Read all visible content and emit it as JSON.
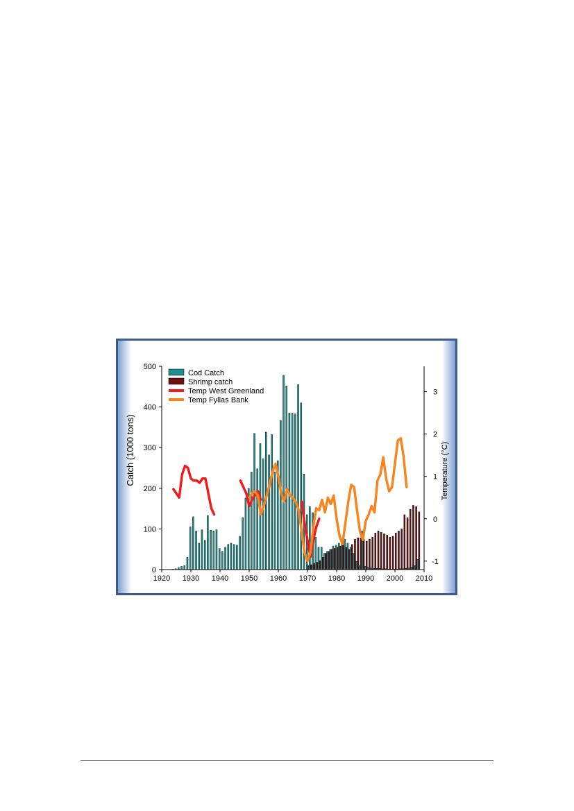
{
  "colors": {
    "cod": "#1f8e8e",
    "shrimp": "#6b0f10",
    "temp_west_greenland": "#ee1c1c",
    "temp_fyllas_bank": "#f7841c"
  },
  "chart_data": {
    "type": "bar",
    "xlabel": "",
    "ylabel": "Catch (1000 tons)",
    "y2label": "Temperature (°C)",
    "xlim": [
      1920,
      2010
    ],
    "ylim": [
      0,
      500
    ],
    "y2lim": [
      -1.2,
      3.6
    ],
    "xticks": [
      "1920",
      "1930",
      "1940",
      "1950",
      "1960",
      "1970",
      "1980",
      "1990",
      "2000",
      "2010"
    ],
    "yticks": [
      "0",
      "100",
      "200",
      "300",
      "400",
      "500"
    ],
    "y2ticks": [
      "-1",
      "0",
      "1",
      "2",
      "3"
    ],
    "legend_position": "top-left",
    "legend": [
      "Cod Catch",
      "Shrimp catch",
      "Temp West Greenland",
      "Temp Fyllas Bank"
    ],
    "series": [
      {
        "name": "Cod Catch",
        "kind": "bar",
        "axis": "left",
        "x": [
          1924,
          1925,
          1926,
          1927,
          1928,
          1929,
          1930,
          1931,
          1932,
          1933,
          1934,
          1935,
          1936,
          1937,
          1938,
          1939,
          1940,
          1941,
          1942,
          1943,
          1944,
          1945,
          1946,
          1947,
          1948,
          1949,
          1950,
          1951,
          1952,
          1953,
          1954,
          1955,
          1956,
          1957,
          1958,
          1959,
          1960,
          1961,
          1962,
          1963,
          1964,
          1965,
          1966,
          1967,
          1968,
          1969,
          1970,
          1971,
          1972,
          1973,
          1974,
          1975,
          1976,
          1977,
          1978,
          1979,
          1980,
          1981,
          1982,
          1983,
          1984,
          1985,
          1986,
          1987,
          1988,
          1989,
          1990,
          1991,
          1992,
          1993,
          1994,
          1995,
          1996,
          1997,
          1998,
          1999,
          2000,
          2001,
          2002,
          2003,
          2004,
          2005,
          2006,
          2007,
          2008
        ],
        "values": [
          1,
          2,
          5,
          8,
          10,
          30,
          105,
          130,
          95,
          65,
          98,
          72,
          133,
          97,
          95,
          98,
          52,
          45,
          55,
          62,
          65,
          62,
          60,
          82,
          128,
          176,
          200,
          240,
          335,
          248,
          310,
          273,
          338,
          282,
          332,
          240,
          268,
          367,
          478,
          452,
          385,
          385,
          383,
          455,
          410,
          235,
          135,
          155,
          140,
          80,
          55,
          55,
          40,
          45,
          50,
          58,
          60,
          65,
          70,
          75,
          65,
          55,
          40,
          20,
          10,
          95,
          8,
          5,
          4,
          3,
          3,
          3,
          2,
          2,
          1,
          1,
          1,
          1,
          2,
          2,
          3,
          4,
          6,
          10,
          25
        ]
      },
      {
        "name": "Shrimp catch",
        "kind": "bar",
        "axis": "left",
        "x": [
          1970,
          1971,
          1972,
          1973,
          1974,
          1975,
          1976,
          1977,
          1978,
          1979,
          1980,
          1981,
          1982,
          1983,
          1984,
          1985,
          1986,
          1987,
          1988,
          1989,
          1990,
          1991,
          1992,
          1993,
          1994,
          1995,
          1996,
          1997,
          1998,
          1999,
          2000,
          2001,
          2002,
          2003,
          2004,
          2005,
          2006,
          2007,
          2008
        ],
        "values": [
          10,
          12,
          15,
          18,
          22,
          30,
          40,
          45,
          50,
          52,
          55,
          58,
          60,
          55,
          50,
          62,
          75,
          78,
          78,
          75,
          70,
          75,
          80,
          90,
          95,
          92,
          88,
          85,
          80,
          82,
          90,
          95,
          100,
          135,
          128,
          148,
          158,
          155,
          142
        ]
      },
      {
        "name": "Temp West Greenland",
        "kind": "line",
        "axis": "right",
        "segments": [
          {
            "x": [
              1924,
              1926,
              1927,
              1928,
              1929,
              1930,
              1931,
              1932,
              1933,
              1934,
              1935,
              1936,
              1937,
              1938
            ],
            "y": [
              0.7,
              0.5,
              1.05,
              1.25,
              1.2,
              0.95,
              0.9,
              0.9,
              0.85,
              0.95,
              0.95,
              0.6,
              0.25,
              0.1
            ]
          },
          {
            "x": [
              1947,
              1949,
              1950,
              1951,
              1952,
              1953,
              1954
            ],
            "y": [
              0.9,
              0.6,
              0.3,
              0.45,
              0.55,
              0.65,
              0.45
            ]
          },
          {
            "x": [
              1968,
              1969,
              1970,
              1971,
              1972,
              1973,
              1974
            ],
            "y": [
              0.4,
              -0.1,
              -0.5,
              -0.9,
              -0.5,
              -0.2,
              0.0
            ]
          }
        ]
      },
      {
        "name": "Temp Fyllas Bank",
        "kind": "line",
        "axis": "right",
        "x": [
          1950,
          1951,
          1952,
          1953,
          1954,
          1955,
          1956,
          1957,
          1958,
          1959,
          1960,
          1961,
          1962,
          1963,
          1964,
          1965,
          1966,
          1967,
          1968,
          1969,
          1970,
          1971,
          1972,
          1973,
          1974,
          1975,
          1976,
          1977,
          1978,
          1979,
          1980,
          1981,
          1982,
          1983,
          1984,
          1985,
          1986,
          1987,
          1988,
          1989,
          1990,
          1991,
          1992,
          1993,
          1994,
          1995,
          1996,
          1997,
          1998,
          1999,
          2000,
          2001,
          2002,
          2003,
          2004,
          2005,
          2006,
          2007
        ],
        "y": [
          0.5,
          0.6,
          0.65,
          0.55,
          0.1,
          0.3,
          0.55,
          0.8,
          1.1,
          1.3,
          1.0,
          0.6,
          0.4,
          0.7,
          0.55,
          0.5,
          0.4,
          0.2,
          -0.3,
          -0.8,
          -1.0,
          -0.8,
          -0.2,
          0.25,
          0.2,
          0.45,
          0.15,
          0.5,
          0.35,
          0.55,
          0.0,
          -0.4,
          -0.6,
          -0.1,
          0.4,
          0.8,
          0.75,
          0.2,
          -0.3,
          -0.5,
          -0.05,
          0.1,
          0.3,
          0.15,
          0.9,
          1.05,
          1.45,
          0.95,
          0.65,
          0.75,
          1.3,
          1.85,
          1.9,
          1.45,
          0.75,
          null,
          null,
          null
        ]
      }
    ]
  }
}
